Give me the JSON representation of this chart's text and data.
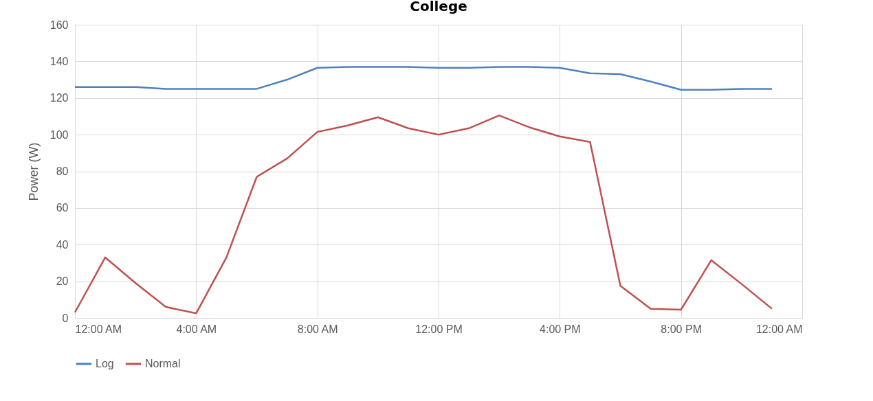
{
  "chart_data": {
    "type": "line",
    "title": "College",
    "ylabel": "Power (W)",
    "x": [
      0,
      1,
      2,
      3,
      4,
      5,
      6,
      7,
      8,
      9,
      10,
      11,
      12,
      13,
      14,
      15,
      16,
      17,
      18,
      19,
      20,
      21,
      22,
      23
    ],
    "xlim": [
      0,
      24
    ],
    "xticks": [
      {
        "value": 0,
        "label": "12:00 AM"
      },
      {
        "value": 4,
        "label": "4:00 AM"
      },
      {
        "value": 8,
        "label": "8:00 AM"
      },
      {
        "value": 12,
        "label": "12:00 PM"
      },
      {
        "value": 16,
        "label": "4:00 PM"
      },
      {
        "value": 20,
        "label": "8:00 PM"
      },
      {
        "value": 24,
        "label": "12:00 AM"
      }
    ],
    "ylim": [
      0,
      160
    ],
    "yticks": [
      0,
      20,
      40,
      60,
      80,
      100,
      120,
      140,
      160
    ],
    "series": [
      {
        "name": "Log",
        "color": "#4f81bd",
        "values": [
          126,
          126,
          126,
          125,
          125,
          125,
          125,
          130,
          136.5,
          137,
          137,
          137,
          136.5,
          136.5,
          137,
          137,
          136.5,
          133.5,
          133,
          129,
          124.5,
          124.5,
          125,
          125
        ]
      },
      {
        "name": "Normal",
        "color": "#c0504d",
        "values": [
          3,
          33,
          19,
          6,
          2.5,
          33,
          77,
          87,
          101.5,
          105,
          109.5,
          103.5,
          100,
          103.5,
          110.5,
          104,
          99,
          96,
          17.5,
          5,
          4.5,
          31.5,
          18.5,
          5
        ]
      }
    ],
    "grid": true,
    "legend": "bottom",
    "marker": "none",
    "line_style": "solid"
  }
}
